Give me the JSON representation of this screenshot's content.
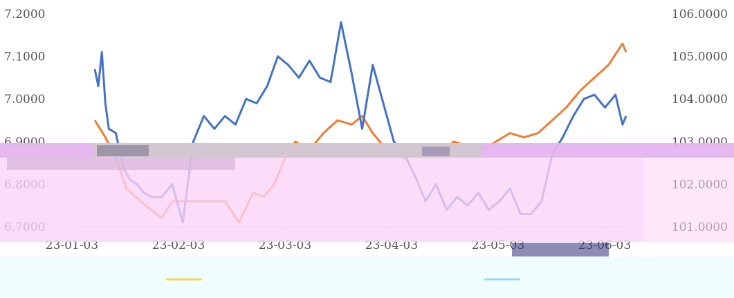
{
  "chart_data": {
    "type": "line",
    "x_tick_labels": [
      "23-01-03",
      "23-02-03",
      "23-03-03",
      "23-04-03",
      "23-05-03",
      "23-06-03"
    ],
    "y_left_tick_labels": [
      "7.2000",
      "7.1000",
      "7.0000",
      "6.9000",
      "6.8000",
      "6.7000"
    ],
    "y_right_tick_labels": [
      "106.0000",
      "105.0000",
      "104.0000",
      "103.0000",
      "102.0000",
      "101.0000"
    ],
    "ylim_left": [
      6.7,
      7.2
    ],
    "ylim_right": [
      101,
      106
    ],
    "x_days": [
      0,
      151
    ],
    "grid": false,
    "series": [
      {
        "axis": "left",
        "color": "#ed7d31",
        "x": [
          0,
          3,
          6,
          9,
          13,
          16,
          19,
          22,
          27,
          33,
          37,
          41,
          45,
          48,
          51,
          54,
          57,
          61,
          65,
          69,
          73,
          76,
          79,
          82,
          85,
          88,
          91,
          94,
          98,
          102,
          106,
          110,
          114,
          118,
          122,
          126,
          130,
          134,
          138,
          142,
          146,
          150,
          151
        ],
        "y": [
          6.95,
          6.91,
          6.86,
          6.79,
          6.76,
          6.74,
          6.72,
          6.76,
          6.76,
          6.76,
          6.76,
          6.71,
          6.78,
          6.77,
          6.8,
          6.86,
          6.9,
          6.88,
          6.92,
          6.95,
          6.94,
          6.96,
          6.92,
          6.89,
          6.88,
          6.86,
          6.87,
          6.88,
          6.87,
          6.9,
          6.89,
          6.88,
          6.9,
          6.92,
          6.91,
          6.92,
          6.95,
          6.98,
          7.02,
          7.05,
          7.08,
          7.13,
          7.11
        ]
      },
      {
        "axis": "right",
        "color": "#4472c4",
        "x": [
          0,
          1,
          2,
          3,
          4,
          6,
          8,
          10,
          12,
          14,
          16,
          19,
          22,
          25,
          28,
          31,
          34,
          37,
          40,
          43,
          46,
          49,
          52,
          55,
          58,
          61,
          64,
          67,
          70,
          73,
          76,
          79,
          82,
          85,
          88,
          91,
          94,
          97,
          100,
          103,
          106,
          109,
          112,
          115,
          118,
          121,
          124,
          127,
          130,
          133,
          136,
          139,
          142,
          145,
          148,
          150,
          151
        ],
        "y": [
          104.7,
          104.3,
          105.1,
          103.9,
          103.3,
          103.2,
          102.4,
          102.1,
          102.0,
          101.8,
          101.7,
          101.7,
          102.0,
          101.1,
          103.0,
          103.6,
          103.3,
          103.6,
          103.4,
          104.0,
          103.9,
          104.3,
          105.0,
          104.8,
          104.5,
          104.9,
          104.5,
          104.4,
          105.8,
          104.6,
          103.3,
          104.8,
          103.9,
          103.0,
          102.7,
          102.2,
          101.6,
          102.0,
          101.4,
          101.7,
          101.5,
          101.8,
          101.4,
          101.6,
          101.9,
          101.3,
          101.3,
          101.6,
          102.7,
          103.1,
          103.6,
          104.0,
          104.1,
          103.8,
          104.1,
          103.4,
          103.6
        ]
      }
    ]
  }
}
